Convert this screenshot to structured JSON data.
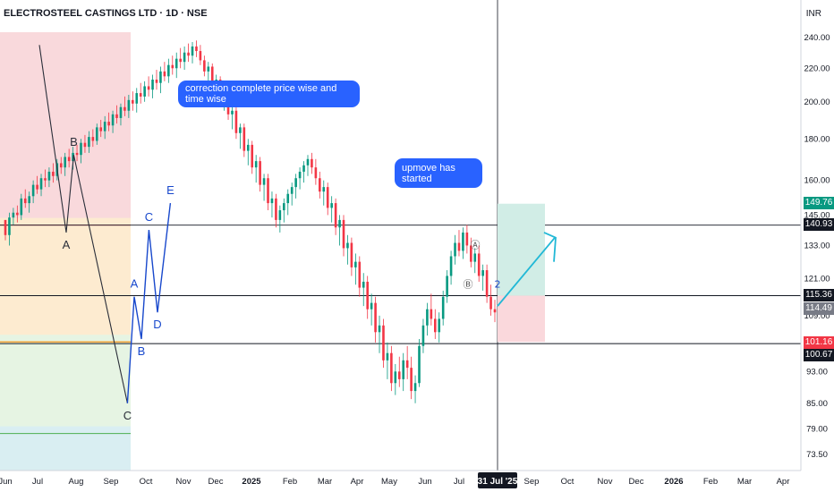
{
  "header": {
    "ticker": "ELECTROSTEEL CASTINGS LTD · 1D · NSE",
    "currency": "INR"
  },
  "annotations": {
    "note1": "correction complete price wise and time wise",
    "note2": "upmove has started"
  },
  "price_tags": [
    {
      "label": "149.76",
      "color": "#089981"
    },
    {
      "label": "140.93",
      "color": "#131722"
    },
    {
      "label": "115.36",
      "color": "#131722"
    },
    {
      "label": "114.49",
      "color": "#787b86"
    },
    {
      "label": "101.16",
      "color": "#f23645"
    },
    {
      "label": "100.67",
      "color": "#131722"
    }
  ],
  "crosshair_date": "31 Jul '25",
  "chart_data": {
    "type": "candlestick",
    "symbol": "ELECTROSTEEL CASTINGS LTD",
    "interval": "1D",
    "exchange": "NSE",
    "currency": "INR",
    "y_scale": "log",
    "y_ticks": [
      240.0,
      220.0,
      200.0,
      180.0,
      160.0,
      145.0,
      133.0,
      121.0,
      109.0,
      93.0,
      85.0,
      79.0,
      73.5
    ],
    "x_ticks": [
      "Jun",
      "Jul",
      "Aug",
      "Sep",
      "Oct",
      "Nov",
      "Dec",
      "2025",
      "Feb",
      "Mar",
      "Apr",
      "May",
      "Jun",
      "Jul",
      "31 Jul '25",
      "Sep",
      "Oct",
      "Nov",
      "Dec",
      "2026",
      "Feb",
      "Mar",
      "Apr"
    ],
    "horizontal_levels": [
      140.93,
      115.36,
      100.67
    ],
    "waves": [
      {
        "name": "correction",
        "points": [
          {
            "date": "2024-09-04",
            "price": 235,
            "label": ""
          },
          {
            "date": "2024-11-18",
            "price": 138,
            "label": "A"
          },
          {
            "date": "2024-12-09",
            "price": 172,
            "label": "B"
          },
          {
            "date": "2025-05-08",
            "price": 85,
            "label": "C"
          }
        ]
      },
      {
        "name": "upmove",
        "points": [
          {
            "date": "2025-05-08",
            "price": 85,
            "label": ""
          },
          {
            "date": "2025-05-27",
            "price": 115,
            "label": "A"
          },
          {
            "date": "2025-06-16",
            "price": 102,
            "label": "B"
          },
          {
            "date": "2025-07-07",
            "price": 139,
            "label": "C"
          },
          {
            "date": "2025-07-31",
            "price": 110,
            "label": "D"
          },
          {
            "date": "2025-09-05",
            "price": 150,
            "label": "E"
          }
        ]
      }
    ],
    "sub_wave_labels": [
      "Ⓐ",
      "Ⓑ",
      "2"
    ],
    "position": {
      "entry": 115.36,
      "target": 149.76,
      "stop": 101.16
    },
    "candles": [
      [
        143,
        143,
        135,
        137
      ],
      [
        137,
        146,
        133,
        144
      ],
      [
        144,
        148,
        141,
        146
      ],
      [
        146,
        149,
        142,
        145
      ],
      [
        145,
        154,
        143,
        152
      ],
      [
        152,
        156,
        148,
        150
      ],
      [
        150,
        155,
        146,
        153
      ],
      [
        153,
        160,
        150,
        158
      ],
      [
        158,
        162,
        154,
        156
      ],
      [
        156,
        163,
        153,
        161
      ],
      [
        161,
        165,
        157,
        160
      ],
      [
        160,
        166,
        157,
        164
      ],
      [
        164,
        168,
        159,
        162
      ],
      [
        162,
        170,
        160,
        168
      ],
      [
        168,
        171,
        163,
        166
      ],
      [
        166,
        173,
        162,
        171
      ],
      [
        171,
        175,
        166,
        169
      ],
      [
        169,
        176,
        165,
        173
      ],
      [
        173,
        177,
        169,
        172
      ],
      [
        172,
        180,
        168,
        178
      ],
      [
        178,
        182,
        173,
        176
      ],
      [
        176,
        184,
        173,
        181
      ],
      [
        181,
        185,
        176,
        179
      ],
      [
        179,
        188,
        177,
        186
      ],
      [
        186,
        190,
        181,
        184
      ],
      [
        184,
        192,
        180,
        189
      ],
      [
        189,
        194,
        184,
        187
      ],
      [
        187,
        195,
        183,
        193
      ],
      [
        193,
        198,
        188,
        191
      ],
      [
        191,
        199,
        187,
        197
      ],
      [
        197,
        203,
        192,
        195
      ],
      [
        195,
        204,
        191,
        201
      ],
      [
        201,
        206,
        195,
        199
      ],
      [
        199,
        208,
        194,
        205
      ],
      [
        205,
        211,
        199,
        203
      ],
      [
        203,
        212,
        200,
        209
      ],
      [
        209,
        215,
        203,
        207
      ],
      [
        207,
        216,
        202,
        213
      ],
      [
        213,
        219,
        207,
        211
      ],
      [
        211,
        221,
        205,
        218
      ],
      [
        218,
        224,
        212,
        215
      ],
      [
        215,
        226,
        211,
        222
      ],
      [
        222,
        228,
        216,
        220
      ],
      [
        220,
        230,
        214,
        226
      ],
      [
        226,
        233,
        220,
        224
      ],
      [
        224,
        234,
        219,
        230
      ],
      [
        230,
        236,
        224,
        228
      ],
      [
        228,
        237,
        223,
        234
      ],
      [
        234,
        238,
        227,
        231
      ],
      [
        231,
        235,
        222,
        225
      ],
      [
        225,
        228,
        215,
        218
      ],
      [
        218,
        224,
        211,
        221
      ],
      [
        221,
        223,
        208,
        211
      ],
      [
        211,
        216,
        203,
        213
      ],
      [
        213,
        215,
        199,
        202
      ],
      [
        202,
        208,
        195,
        205
      ],
      [
        205,
        207,
        190,
        193
      ],
      [
        193,
        198,
        185,
        195
      ],
      [
        195,
        197,
        180,
        183
      ],
      [
        183,
        188,
        175,
        186
      ],
      [
        186,
        188,
        171,
        174
      ],
      [
        174,
        180,
        167,
        177
      ],
      [
        177,
        179,
        163,
        166
      ],
      [
        166,
        172,
        159,
        169
      ],
      [
        169,
        171,
        155,
        158
      ],
      [
        158,
        163,
        151,
        161
      ],
      [
        161,
        163,
        147,
        150
      ],
      [
        150,
        155,
        144,
        152
      ],
      [
        152,
        154,
        140,
        143
      ],
      [
        143,
        149,
        138,
        147
      ],
      [
        147,
        152,
        142,
        150
      ],
      [
        150,
        156,
        145,
        154
      ],
      [
        154,
        159,
        149,
        157
      ],
      [
        157,
        163,
        152,
        161
      ],
      [
        161,
        166,
        156,
        164
      ],
      [
        164,
        169,
        159,
        167
      ],
      [
        167,
        172,
        162,
        170
      ],
      [
        170,
        173,
        163,
        166
      ],
      [
        166,
        170,
        158,
        161
      ],
      [
        161,
        164,
        152,
        155
      ],
      [
        155,
        160,
        149,
        157
      ],
      [
        157,
        159,
        145,
        148
      ],
      [
        148,
        153,
        142,
        150
      ],
      [
        150,
        152,
        137,
        140
      ],
      [
        140,
        145,
        133,
        143
      ],
      [
        143,
        145,
        129,
        132
      ],
      [
        132,
        137,
        126,
        134
      ],
      [
        134,
        136,
        122,
        125
      ],
      [
        125,
        130,
        119,
        127
      ],
      [
        127,
        129,
        115,
        118
      ],
      [
        118,
        123,
        112,
        120
      ],
      [
        120,
        122,
        108,
        111
      ],
      [
        111,
        116,
        106,
        113
      ],
      [
        113,
        115,
        101,
        104
      ],
      [
        104,
        109,
        98,
        106
      ],
      [
        106,
        108,
        94,
        96
      ],
      [
        96,
        101,
        91,
        98
      ],
      [
        98,
        100,
        88,
        90
      ],
      [
        90,
        95,
        87,
        93
      ],
      [
        93,
        97,
        89,
        91
      ],
      [
        91,
        98,
        88,
        96
      ],
      [
        96,
        100,
        91,
        94
      ],
      [
        94,
        97,
        86,
        88
      ],
      [
        88,
        92,
        85,
        90
      ],
      [
        90,
        102,
        89,
        100
      ],
      [
        100,
        108,
        98,
        106
      ],
      [
        106,
        113,
        103,
        111
      ],
      [
        111,
        116,
        106,
        108
      ],
      [
        108,
        111,
        102,
        104
      ],
      [
        104,
        110,
        101,
        108
      ],
      [
        108,
        117,
        106,
        115
      ],
      [
        115,
        124,
        113,
        122
      ],
      [
        122,
        131,
        119,
        129
      ],
      [
        129,
        137,
        126,
        134
      ],
      [
        134,
        139,
        129,
        131
      ],
      [
        131,
        140,
        128,
        138
      ],
      [
        138,
        141,
        130,
        133
      ],
      [
        133,
        136,
        125,
        127
      ],
      [
        127,
        132,
        123,
        130
      ],
      [
        130,
        133,
        120,
        122
      ],
      [
        122,
        126,
        117,
        124
      ],
      [
        124,
        126,
        113,
        115
      ],
      [
        115,
        119,
        109,
        111
      ],
      [
        111,
        114,
        107,
        110
      ]
    ]
  }
}
